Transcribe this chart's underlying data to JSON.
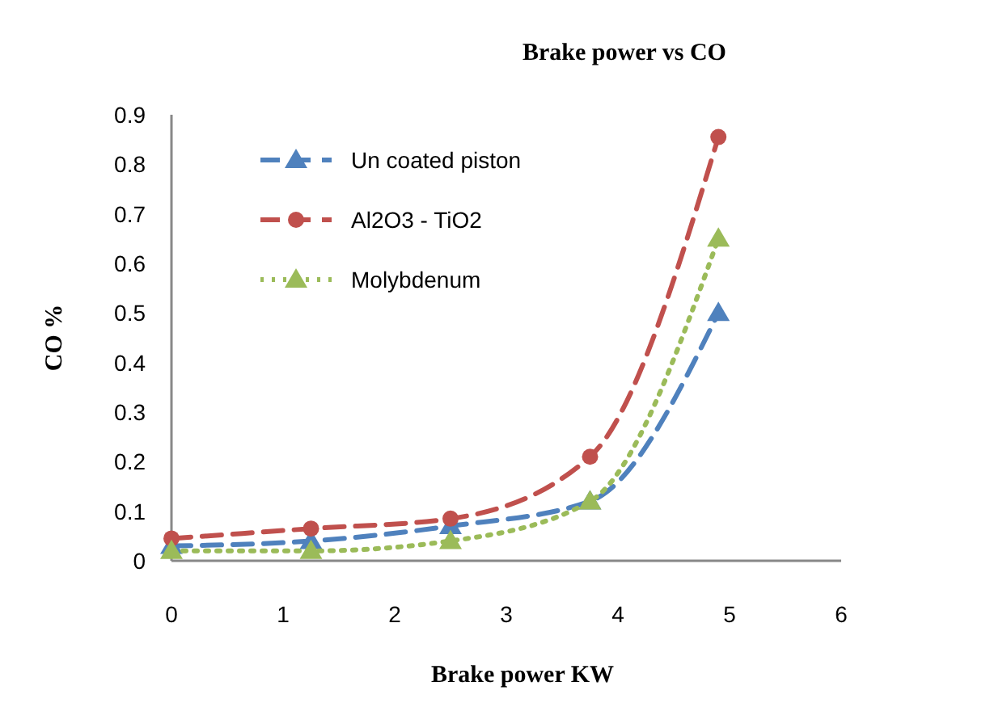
{
  "chart_data": {
    "type": "line",
    "title": "Brake power vs CO",
    "xlabel": "Brake power KW",
    "ylabel": "CO %",
    "x": [
      0,
      1.25,
      2.5,
      3.75,
      4.9
    ],
    "series": [
      {
        "name": "Un coated piston",
        "color": "#4f81bd",
        "values": [
          0.03,
          0.04,
          0.07,
          0.12,
          0.5
        ],
        "marker": "triangle",
        "line_style": "dashed"
      },
      {
        "name": "Al2O3 - TiO2",
        "color": "#c0504d",
        "values": [
          0.045,
          0.065,
          0.085,
          0.21,
          0.855
        ],
        "marker": "circle",
        "line_style": "dashed"
      },
      {
        "name": "Molybdenum",
        "color": "#9bbb59",
        "values": [
          0.02,
          0.02,
          0.04,
          0.12,
          0.65
        ],
        "marker": "triangle",
        "line_style": "dotted"
      }
    ],
    "xlim": [
      0,
      6
    ],
    "xticks": [
      0,
      1,
      2,
      3,
      4,
      5,
      6
    ],
    "ylim": [
      0,
      0.9
    ],
    "yticks": [
      0,
      0.1,
      0.2,
      0.3,
      0.4,
      0.5,
      0.6,
      0.7,
      0.8,
      0.9
    ],
    "grid": false,
    "legend": "top left"
  }
}
